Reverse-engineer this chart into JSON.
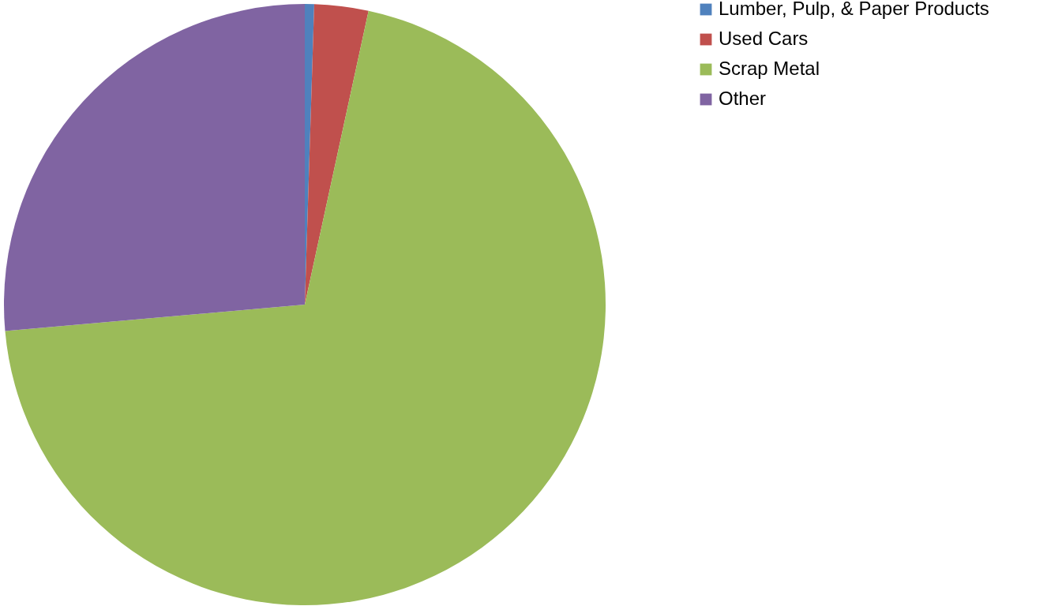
{
  "chart_data": {
    "type": "pie",
    "categories": [
      "Lumber, Pulp, & Paper Products",
      "Used Cars",
      "Scrap Metal",
      "Other"
    ],
    "values": [
      0.5,
      2.9,
      70.2,
      26.4
    ],
    "colors": [
      "#4f81bd",
      "#c0504d",
      "#9bbb59",
      "#8064a2"
    ],
    "legend": "right"
  }
}
